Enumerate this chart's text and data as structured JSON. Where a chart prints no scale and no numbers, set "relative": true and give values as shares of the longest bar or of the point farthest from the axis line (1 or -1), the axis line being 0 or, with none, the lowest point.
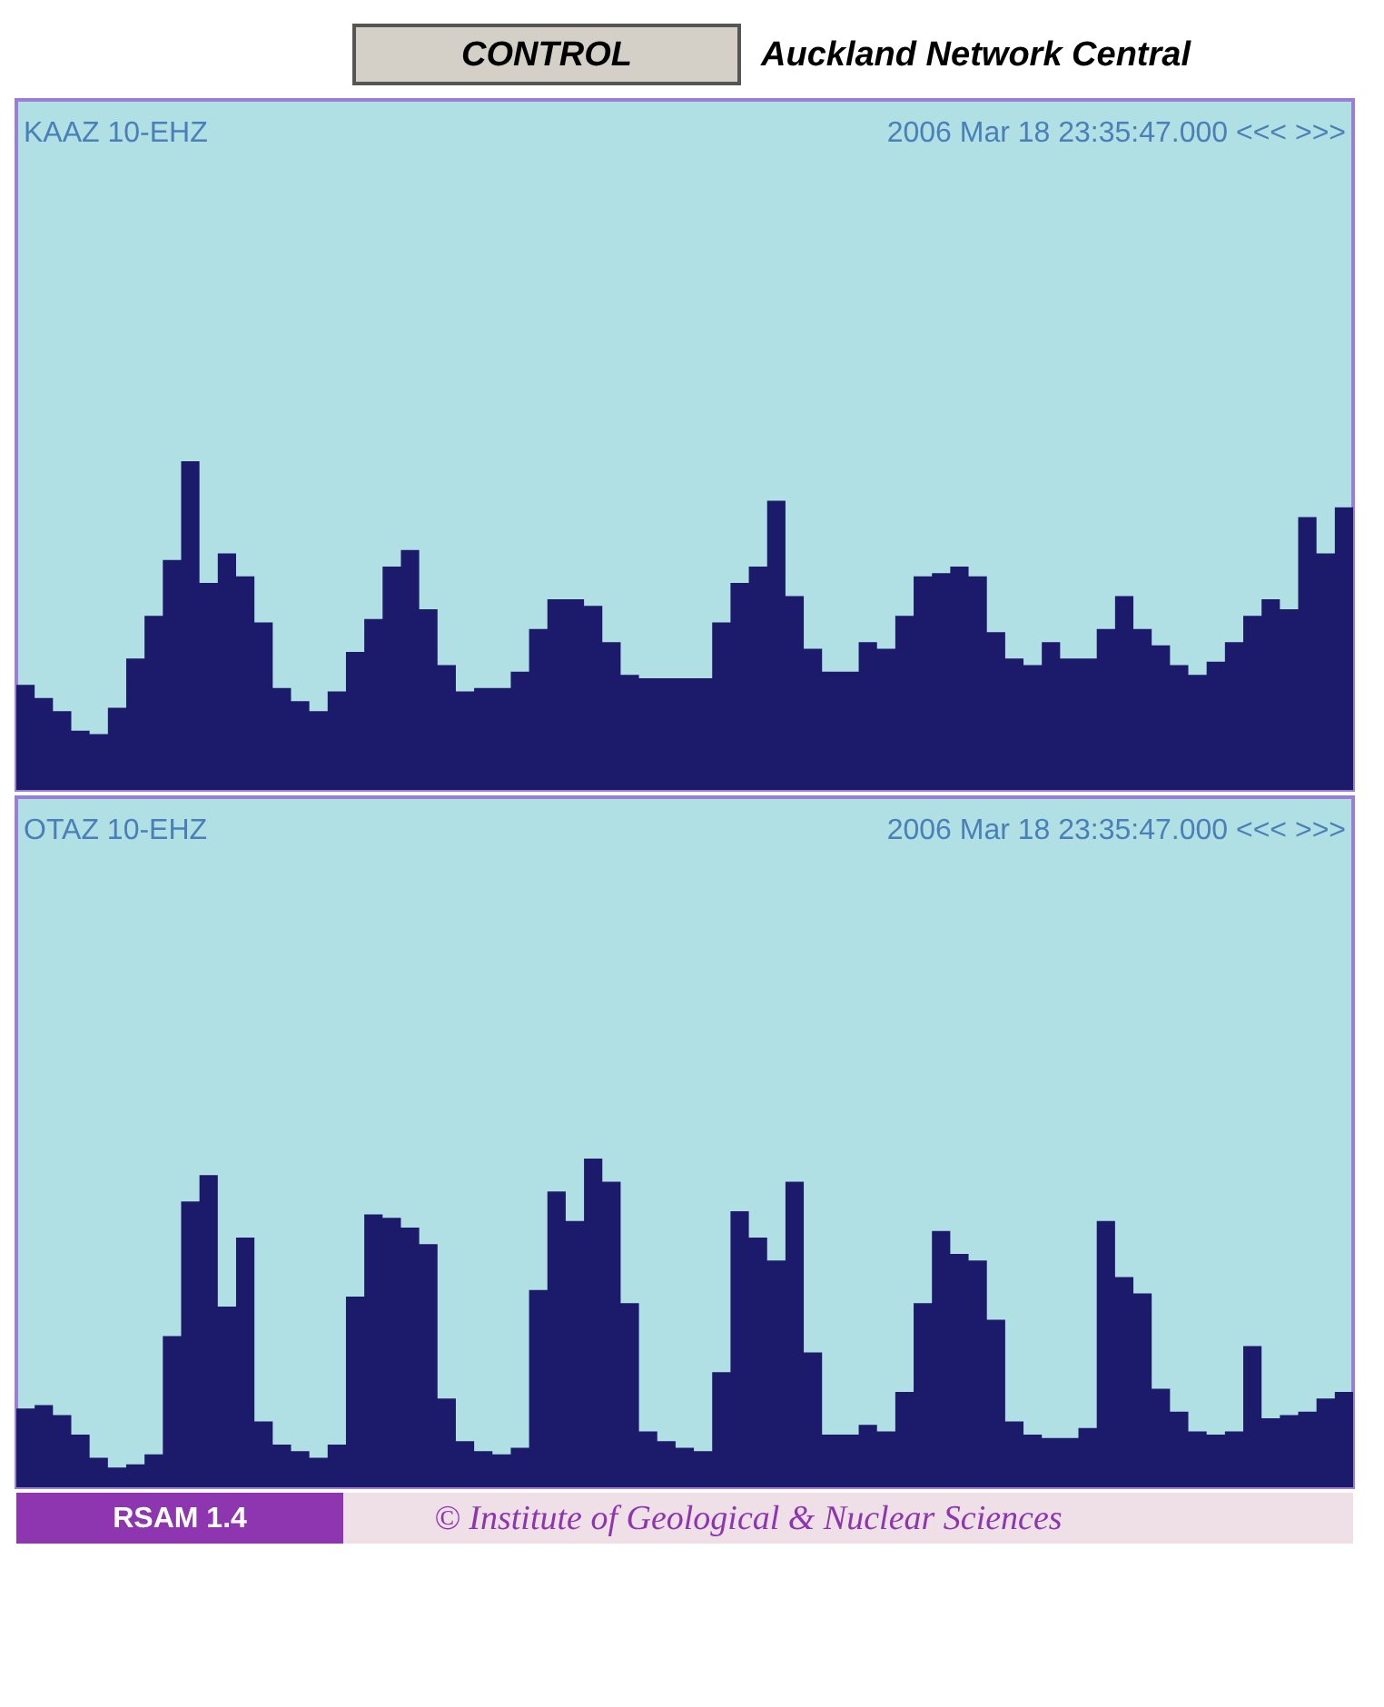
{
  "chart_data": [
    {
      "type": "area",
      "title": "KAAZ 10-EHZ",
      "relative": true,
      "tick_labels": false,
      "annotations": [
        "CONTROL",
        "Auckland Network Central",
        "2006 Mar 18 23:35:47.000 <<< >>>"
      ],
      "categories": [
        null,
        null,
        null,
        null,
        null,
        null,
        null,
        null,
        null,
        null,
        null,
        null,
        null,
        null,
        null,
        null,
        null,
        null,
        null,
        null,
        null,
        null,
        null,
        null,
        null,
        null,
        null,
        null,
        null,
        null,
        null,
        null,
        null,
        null,
        null,
        null,
        null,
        null,
        null,
        null,
        null,
        null,
        null,
        null,
        null,
        null,
        null,
        null,
        null,
        null,
        null,
        null,
        null,
        null,
        null,
        null,
        null,
        null,
        null,
        null,
        null,
        null,
        null,
        null,
        null,
        null,
        null,
        null,
        null,
        null,
        null,
        null,
        null,
        null
      ],
      "series": [
        {
          "color": "#1c1a6b",
          "values": [
            0.32,
            0.28,
            0.24,
            0.18,
            0.17,
            0.25,
            0.4,
            0.53,
            0.7,
            1,
            0.63,
            0.72,
            0.65,
            0.51,
            0.31,
            0.27,
            0.24,
            0.3,
            0.42,
            0.52,
            0.68,
            0.73,
            0.55,
            0.38,
            0.3,
            0.31,
            0.31,
            0.36,
            0.49,
            0.58,
            0.58,
            0.56,
            0.45,
            0.35,
            0.34,
            0.34,
            0.34,
            0.34,
            0.51,
            0.63,
            0.68,
            0.88,
            0.59,
            0.43,
            0.36,
            0.36,
            0.45,
            0.43,
            0.53,
            0.65,
            0.66,
            0.68,
            0.65,
            0.48,
            0.4,
            0.38,
            0.45,
            0.4,
            0.4,
            0.49,
            0.59,
            0.49,
            0.44,
            0.38,
            0.35,
            0.39,
            0.45,
            0.53,
            0.58,
            0.55,
            0.83,
            0.72,
            0.86,
            0.89
          ]
        }
      ]
    },
    {
      "type": "area",
      "title": "OTAZ 10-EHZ",
      "relative": true,
      "tick_labels": false,
      "annotations": [
        "2006 Mar 18 23:35:47.000 <<< >>>",
        "RSAM 1.4",
        "© Institute of Geological & Nuclear Sciences"
      ],
      "categories": [
        null,
        null,
        null,
        null,
        null,
        null,
        null,
        null,
        null,
        null,
        null,
        null,
        null,
        null,
        null,
        null,
        null,
        null,
        null,
        null,
        null,
        null,
        null,
        null,
        null,
        null,
        null,
        null,
        null,
        null,
        null,
        null,
        null,
        null,
        null,
        null,
        null,
        null,
        null,
        null,
        null,
        null,
        null,
        null,
        null,
        null,
        null,
        null,
        null,
        null,
        null,
        null,
        null,
        null,
        null,
        null,
        null,
        null,
        null,
        null,
        null,
        null,
        null,
        null,
        null,
        null,
        null,
        null,
        null,
        null,
        null,
        null,
        null,
        null
      ],
      "series": [
        {
          "color": "#1c1a6b",
          "values": [
            0.24,
            0.25,
            0.22,
            0.16,
            0.09,
            0.06,
            0.07,
            0.1,
            0.46,
            0.87,
            0.95,
            0.55,
            0.76,
            0.2,
            0.13,
            0.11,
            0.09,
            0.13,
            0.58,
            0.83,
            0.82,
            0.79,
            0.74,
            0.27,
            0.14,
            0.11,
            0.1,
            0.12,
            0.6,
            0.9,
            0.81,
            1,
            0.93,
            0.56,
            0.17,
            0.14,
            0.12,
            0.11,
            0.35,
            0.84,
            0.76,
            0.69,
            0.93,
            0.41,
            0.16,
            0.16,
            0.19,
            0.17,
            0.29,
            0.56,
            0.78,
            0.71,
            0.69,
            0.51,
            0.2,
            0.16,
            0.15,
            0.15,
            0.18,
            0.81,
            0.64,
            0.59,
            0.3,
            0.23,
            0.17,
            0.16,
            0.17,
            0.43,
            0.21,
            0.22,
            0.23,
            0.27,
            0.29,
            0.35
          ]
        }
      ]
    }
  ]
}
